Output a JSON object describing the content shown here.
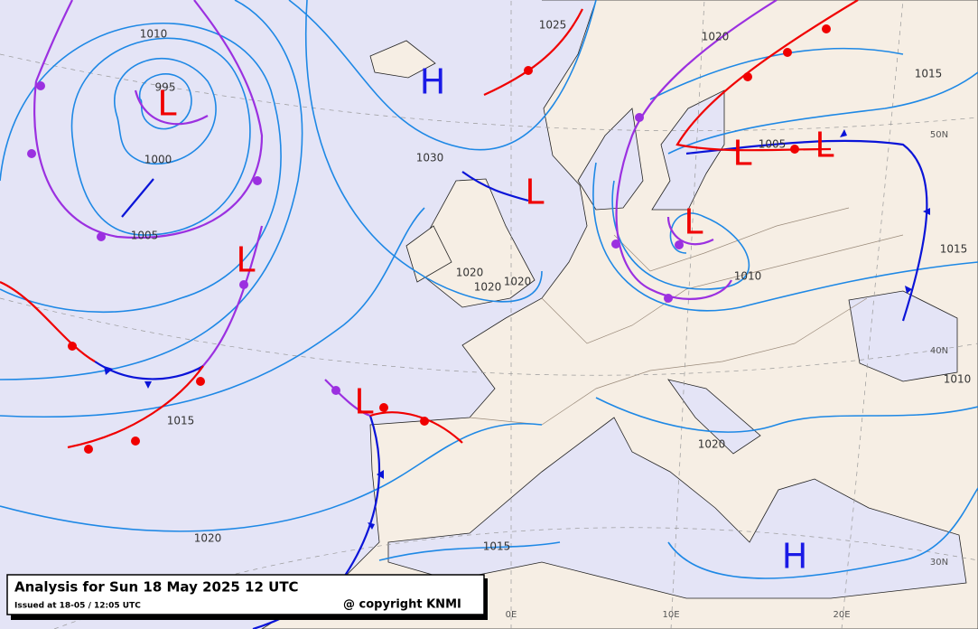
{
  "caption": {
    "title": "Analysis for Sun 18 May 2025 12 UTC",
    "issued": "Issued at 18-05 / 12:05 UTC",
    "copyright": "@ copyright KNMI"
  },
  "pressure_labels": [
    "1010",
    "995",
    "1000",
    "1005",
    "1025",
    "1020",
    "1015",
    "1030",
    "1005",
    "1020",
    "1020",
    "1020",
    "1010",
    "1015",
    "1010",
    "1015",
    "1020",
    "1020",
    "1015"
  ],
  "pressure_centers": [
    "H",
    "L",
    "L",
    "L",
    "L",
    "L",
    "L",
    "L",
    "H"
  ],
  "grid_labels": [
    "50N",
    "40N",
    "30N",
    "0E",
    "10E",
    "20E"
  ]
}
